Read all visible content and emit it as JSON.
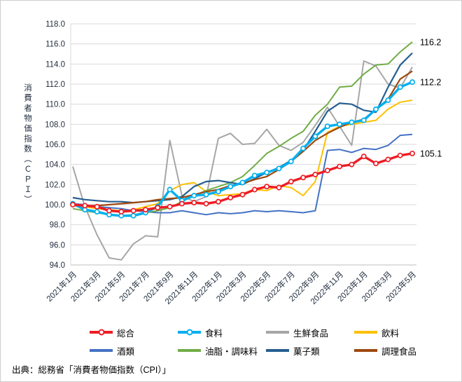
{
  "figure": {
    "y_axis_title": "消費者物価指数（ＣＰＩ）",
    "source_note": "出典：総務省「消費者物価指数（CPI）」"
  },
  "chart_data": {
    "type": "line",
    "title": "",
    "ylabel": "消費者物価指数（CPI）",
    "xlabel": "",
    "grid": "horizontal",
    "legend_position": "bottom",
    "y_axis": {
      "min": 94.0,
      "max": 118.0,
      "step": 2.0,
      "tick_format": "one-decimal"
    },
    "x_tick_labels": [
      "2021年1月",
      "2021年3月",
      "2021年5月",
      "2021年7月",
      "2021年9月",
      "2021年11月",
      "2022年1月",
      "2022年3月",
      "2022年5月",
      "2022年7月",
      "2022年9月",
      "2022年11月",
      "2023年1月",
      "2023年3月",
      "2023年5月"
    ],
    "x_points_per_tick": 2,
    "n_points": 29,
    "series": [
      {
        "name": "総合",
        "color": "#ee1c25",
        "marker": true,
        "width": 3.4,
        "values": [
          100.0,
          99.9,
          99.8,
          99.4,
          99.3,
          99.4,
          99.5,
          99.7,
          99.8,
          100.1,
          100.2,
          100.1,
          100.3,
          100.7,
          101.0,
          101.5,
          101.8,
          101.7,
          102.3,
          102.7,
          103.0,
          103.4,
          103.8,
          104.0,
          104.8,
          104.1,
          104.5,
          104.9,
          105.1
        ]
      },
      {
        "name": "食料",
        "color": "#00b0f0",
        "marker": true,
        "width": 3.4,
        "values": [
          100.1,
          99.5,
          99.3,
          99.0,
          98.9,
          98.9,
          99.2,
          99.8,
          101.5,
          100.4,
          100.9,
          101.0,
          101.3,
          101.8,
          102.2,
          102.9,
          103.2,
          103.6,
          104.3,
          105.6,
          106.8,
          107.8,
          108.0,
          108.2,
          108.4,
          109.5,
          110.4,
          111.7,
          112.2
        ]
      },
      {
        "name": "生鮮食品",
        "color": "#a6a6a6",
        "marker": false,
        "width": 2,
        "values": [
          103.8,
          99.8,
          97.0,
          94.7,
          94.5,
          96.1,
          96.9,
          96.8,
          106.4,
          100.9,
          100.3,
          100.8,
          106.6,
          107.1,
          106.0,
          106.1,
          107.5,
          105.9,
          105.4,
          106.2,
          107.9,
          109.7,
          107.8,
          105.9,
          114.3,
          113.8,
          112.0,
          111.6,
          113.7
        ]
      },
      {
        "name": "飲料",
        "color": "#ffc000",
        "marker": false,
        "width": 2,
        "values": [
          99.9,
          99.8,
          99.6,
          99.5,
          99.4,
          99.5,
          99.8,
          100.1,
          101.4,
          102.0,
          102.2,
          101.3,
          100.9,
          101.0,
          101.1,
          101.5,
          101.4,
          101.9,
          101.7,
          100.9,
          102.3,
          107.2,
          107.8,
          108.0,
          108.2,
          108.4,
          109.5,
          110.2,
          110.4
        ]
      },
      {
        "name": "酒類",
        "color": "#4472c4",
        "marker": false,
        "width": 2,
        "values": [
          100.1,
          100.0,
          99.8,
          99.7,
          99.6,
          99.4,
          99.3,
          99.2,
          99.2,
          99.4,
          99.2,
          99.0,
          99.2,
          99.1,
          99.2,
          99.4,
          99.3,
          99.4,
          99.3,
          99.2,
          99.4,
          105.4,
          105.5,
          105.2,
          105.6,
          105.5,
          105.9,
          106.9,
          107.0
        ]
      },
      {
        "name": "油脂・調味料",
        "color": "#70ad47",
        "marker": false,
        "width": 2,
        "values": [
          99.6,
          99.4,
          99.2,
          99.0,
          98.9,
          99.0,
          99.2,
          99.4,
          99.7,
          100.3,
          100.9,
          101.4,
          101.8,
          102.2,
          102.8,
          103.9,
          105.1,
          105.8,
          106.6,
          107.3,
          108.9,
          110.0,
          111.7,
          111.8,
          113.0,
          113.9,
          114.0,
          115.2,
          116.2
        ]
      },
      {
        "name": "菓子類",
        "color": "#255e91",
        "marker": false,
        "width": 2.2,
        "values": [
          100.7,
          100.5,
          100.4,
          100.3,
          100.3,
          100.2,
          100.3,
          100.4,
          100.5,
          100.8,
          101.8,
          102.3,
          102.4,
          102.2,
          102.0,
          102.6,
          103.2,
          103.7,
          104.4,
          105.4,
          107.3,
          109.3,
          110.1,
          110.0,
          109.4,
          109.2,
          111.7,
          113.9,
          115.1
        ]
      },
      {
        "name": "調理食品",
        "color": "#9e480e",
        "marker": false,
        "width": 2.2,
        "values": [
          100.0,
          99.9,
          99.9,
          100.0,
          100.1,
          100.2,
          100.3,
          100.5,
          100.6,
          100.7,
          101.0,
          101.3,
          101.5,
          101.9,
          102.1,
          102.5,
          102.8,
          103.5,
          104.3,
          105.3,
          106.4,
          107.1,
          107.7,
          108.2,
          108.5,
          109.5,
          110.5,
          112.5,
          113.3
        ]
      }
    ],
    "end_labels": [
      {
        "text": "116.2",
        "value": 116.2
      },
      {
        "text": "112.2",
        "value": 112.2
      },
      {
        "text": "105.1",
        "value": 105.1
      }
    ]
  }
}
